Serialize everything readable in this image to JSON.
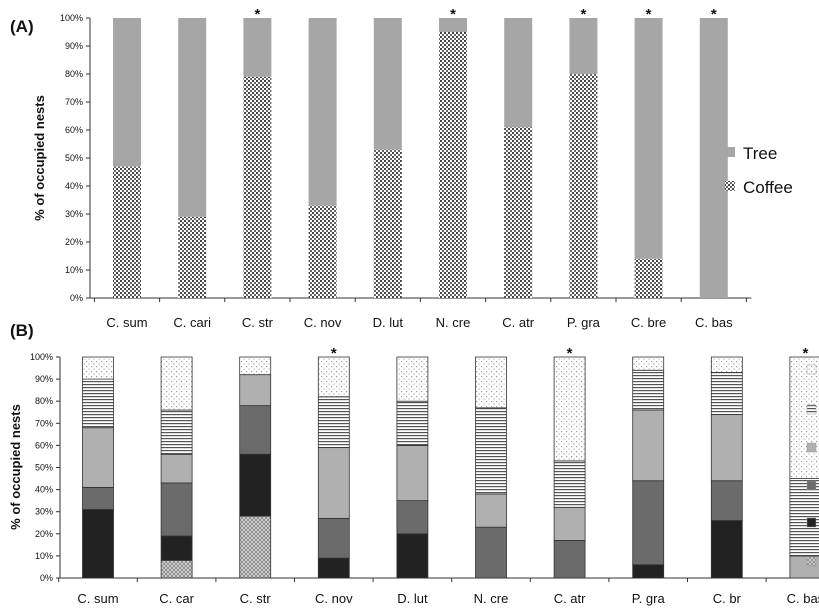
{
  "chart_data": [
    {
      "type": "bar",
      "stacked": true,
      "percent": true,
      "panel_label": "(A)",
      "ylabel": "% of occupied nests",
      "xlabel": "",
      "ylim": [
        0,
        100
      ],
      "yticks": [
        "0%",
        "10%",
        "20%",
        "30%",
        "40%",
        "50%",
        "60%",
        "70%",
        "80%",
        "90%",
        "100%"
      ],
      "categories": [
        "C. sum",
        "C. cari",
        "C. str",
        "C. nov",
        "D. lut",
        "N. cre",
        "C. atr",
        "P. gra",
        "C. bre",
        "C. bas"
      ],
      "significance": [
        false,
        false,
        true,
        false,
        false,
        true,
        false,
        true,
        true,
        true
      ],
      "significance_marker": "*",
      "series": [
        {
          "name": "Coffee",
          "pattern": "dots",
          "values": [
            47,
            29,
            79,
            33,
            53,
            95,
            61,
            80,
            14,
            0
          ]
        },
        {
          "name": "Tree",
          "pattern": "solid-gray",
          "values": [
            53,
            71,
            21,
            67,
            47,
            5,
            39,
            20,
            86,
            100
          ]
        }
      ],
      "legend": {
        "position": "right",
        "entries": [
          "Tree",
          "Coffee"
        ]
      },
      "colors": {
        "tree": "#a6a6a6",
        "coffee_dot": "#444444",
        "axis": "#333333"
      }
    },
    {
      "type": "bar",
      "stacked": true,
      "percent": true,
      "panel_label": "(B)",
      "ylabel": "% of occupied nests",
      "xlabel": "",
      "ylim": [
        0,
        100
      ],
      "yticks": [
        "0%",
        "10%",
        "20%",
        "30%",
        "40%",
        "50%",
        "60%",
        "70%",
        "80%",
        "90%",
        "100%"
      ],
      "categories": [
        "C. sum",
        "C. car",
        "C. str",
        "C. nov",
        "D. lut",
        "N. cre",
        "C. atr",
        "P. gra",
        "C. br",
        "C. bas"
      ],
      "significance": [
        false,
        false,
        false,
        true,
        false,
        false,
        true,
        false,
        false,
        true
      ],
      "significance_marker": "*",
      "series": [
        {
          "pattern": "crosshatch",
          "values": [
            0,
            8,
            28,
            0,
            0,
            0,
            0,
            0,
            0,
            0
          ]
        },
        {
          "pattern": "black",
          "values": [
            31,
            11,
            28,
            9,
            20,
            0,
            0,
            6,
            26,
            0
          ]
        },
        {
          "pattern": "dark-gray",
          "values": [
            10,
            24,
            22,
            18,
            15,
            23,
            17,
            38,
            18,
            0
          ]
        },
        {
          "pattern": "light-gray",
          "values": [
            27,
            13,
            14,
            32,
            25,
            15,
            15,
            32,
            30,
            10
          ]
        },
        {
          "pattern": "horizontal-lines",
          "values": [
            22,
            20,
            0,
            23,
            20,
            39,
            21,
            18,
            19,
            35
          ]
        },
        {
          "pattern": "sparse-dots",
          "values": [
            10,
            24,
            8,
            18,
            20,
            23,
            47,
            6,
            7,
            55
          ]
        }
      ],
      "legend": {
        "position": "right",
        "entries": [
          "",
          "",
          "",
          "",
          "",
          ""
        ]
      },
      "colors": {
        "black": "#222222",
        "dark_gray": "#6b6b6b",
        "light_gray": "#b0b0b0",
        "axis": "#333333"
      }
    }
  ]
}
